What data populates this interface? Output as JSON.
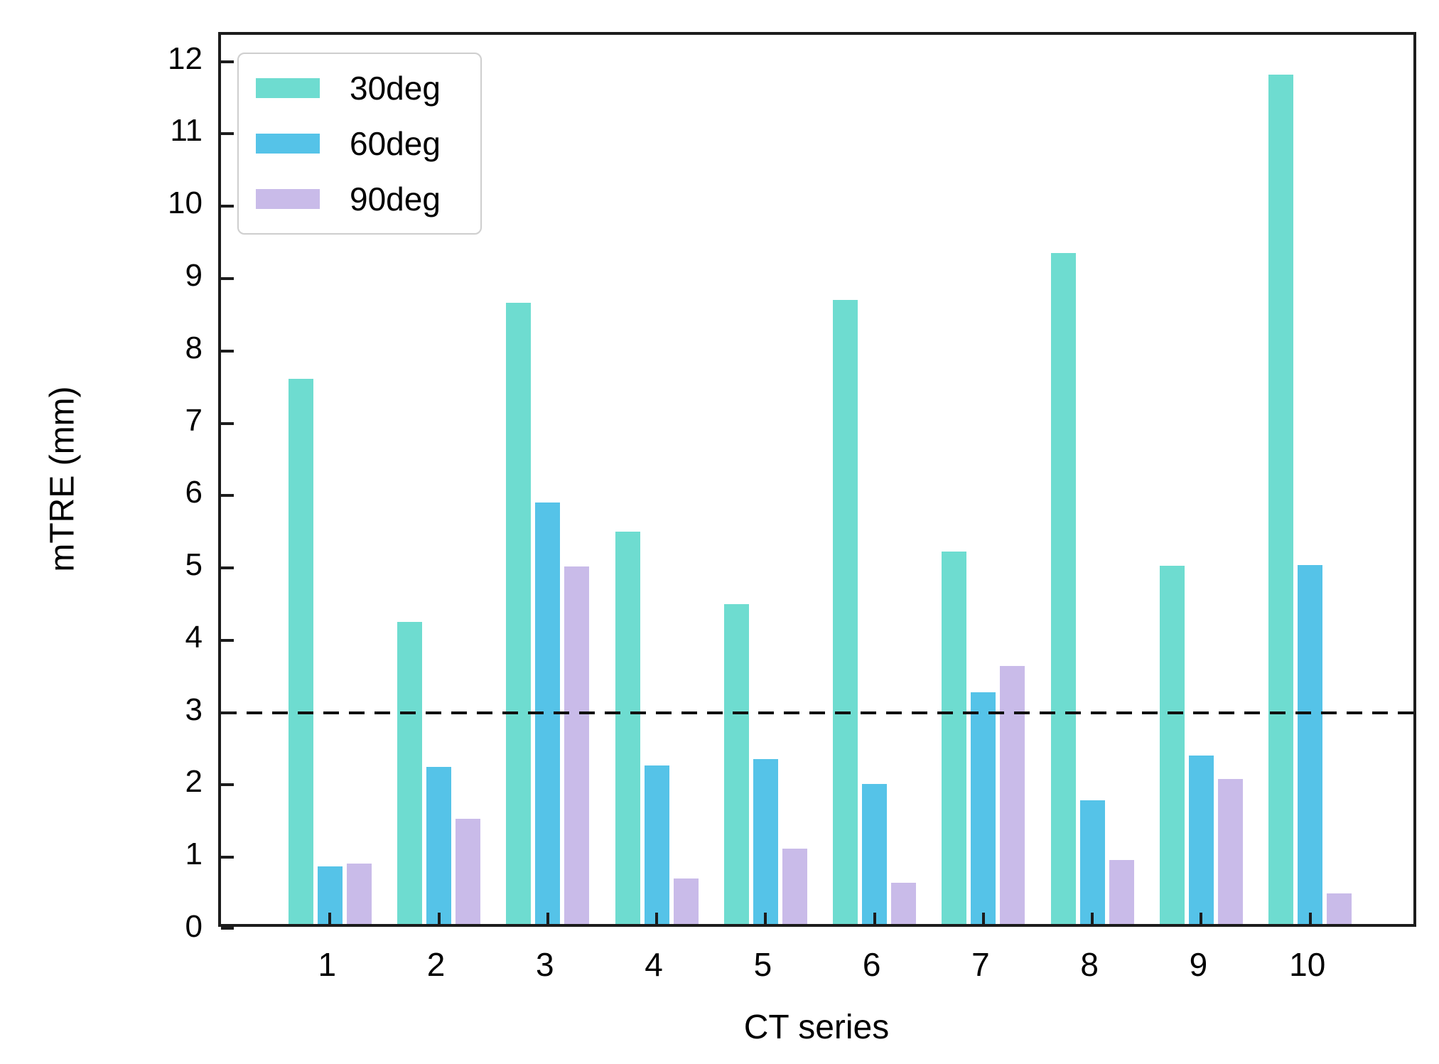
{
  "chart_data": {
    "type": "bar",
    "title": "",
    "xlabel": "CT series",
    "ylabel": "mTRE (mm)",
    "categories": [
      "1",
      "2",
      "3",
      "4",
      "5",
      "6",
      "7",
      "8",
      "9",
      "10"
    ],
    "series": [
      {
        "name": "30deg",
        "color": "#6EDCD0",
        "values": [
          7.54,
          4.18,
          8.59,
          5.42,
          4.42,
          8.63,
          5.15,
          9.28,
          4.95,
          11.74
        ]
      },
      {
        "name": "60deg",
        "color": "#55C3E8",
        "values": [
          0.8,
          2.17,
          5.83,
          2.19,
          2.28,
          1.94,
          3.2,
          1.71,
          2.33,
          4.96
        ]
      },
      {
        "name": "90deg",
        "color": "#C9BBE9",
        "values": [
          0.84,
          1.45,
          4.94,
          0.63,
          1.04,
          0.57,
          3.57,
          0.88,
          2.0,
          0.42
        ]
      }
    ],
    "threshold_line": {
      "y": 3,
      "style": "dashed",
      "color": "#111111"
    },
    "y_ticks": [
      0,
      1,
      2,
      3,
      4,
      5,
      6,
      7,
      8,
      9,
      10,
      11,
      12
    ],
    "ylim": [
      0,
      12.37
    ],
    "xlim": [
      0,
      11
    ],
    "grid": false,
    "legend_position": "upper-left",
    "axis_color": "#1c1c1c"
  }
}
